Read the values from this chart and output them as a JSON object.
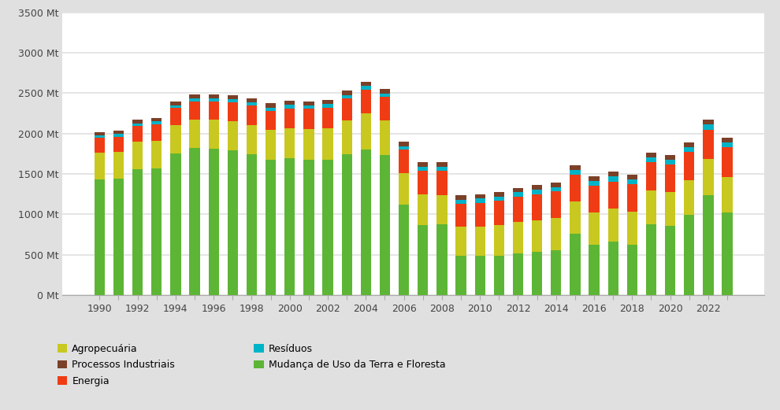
{
  "years": [
    1990,
    1991,
    1992,
    1993,
    1994,
    1995,
    1996,
    1997,
    1998,
    1999,
    2000,
    2001,
    2002,
    2003,
    2004,
    2005,
    2006,
    2007,
    2008,
    2009,
    2010,
    2011,
    2012,
    2013,
    2014,
    2015,
    2016,
    2017,
    2018,
    2019,
    2020,
    2021,
    2022,
    2023
  ],
  "land_use": [
    1430,
    1440,
    1560,
    1570,
    1750,
    1820,
    1810,
    1790,
    1740,
    1680,
    1700,
    1680,
    1680,
    1740,
    1800,
    1730,
    1120,
    870,
    880,
    490,
    490,
    490,
    520,
    540,
    560,
    760,
    620,
    660,
    620,
    880,
    860,
    990,
    1240,
    1020
  ],
  "agro": [
    330,
    330,
    335,
    340,
    350,
    355,
    360,
    365,
    365,
    365,
    370,
    375,
    385,
    420,
    450,
    430,
    390,
    375,
    360,
    355,
    360,
    375,
    385,
    390,
    395,
    400,
    405,
    410,
    415,
    415,
    415,
    430,
    445,
    445
  ],
  "energy": [
    185,
    190,
    195,
    205,
    215,
    220,
    228,
    235,
    238,
    238,
    242,
    250,
    258,
    272,
    290,
    290,
    288,
    292,
    298,
    288,
    295,
    305,
    315,
    322,
    328,
    332,
    330,
    338,
    342,
    348,
    340,
    350,
    365,
    365
  ],
  "residues": [
    32,
    33,
    34,
    35,
    36,
    37,
    38,
    39,
    40,
    40,
    41,
    42,
    43,
    44,
    47,
    47,
    47,
    48,
    49,
    49,
    50,
    51,
    52,
    53,
    54,
    55,
    57,
    59,
    59,
    60,
    60,
    62,
    63,
    64
  ],
  "industrial": [
    42,
    43,
    44,
    45,
    46,
    47,
    48,
    49,
    49,
    49,
    50,
    51,
    53,
    54,
    57,
    57,
    57,
    58,
    59,
    56,
    55,
    56,
    57,
    59,
    60,
    60,
    57,
    58,
    59,
    60,
    55,
    57,
    60,
    57
  ],
  "color_land": "#5db535",
  "color_agro": "#c8c820",
  "color_energy": "#f03c14",
  "color_residues": "#00b4c8",
  "color_industrial": "#7b4028",
  "bg_color": "#e0e0e0",
  "plot_bg": "#ffffff",
  "ylim": [
    0,
    3500
  ],
  "yticks": [
    0,
    500,
    1000,
    1500,
    2000,
    2500,
    3000,
    3500
  ],
  "bar_width": 0.55
}
